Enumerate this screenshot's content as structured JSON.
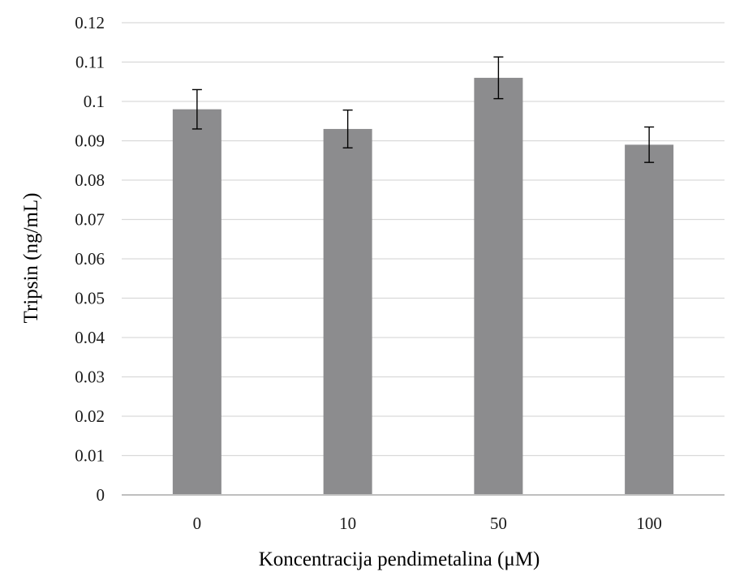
{
  "chart_data": {
    "type": "bar",
    "categories": [
      "0",
      "10",
      "50",
      "100"
    ],
    "values": [
      0.098,
      0.093,
      0.106,
      0.089
    ],
    "errors": [
      0.005,
      0.0048,
      0.0053,
      0.0045
    ],
    "title": "",
    "xlabel": "Koncentracija pendimetalina (μM)",
    "ylabel": "Tripsin (ng/mL)",
    "ylim": [
      0,
      0.12
    ],
    "yticks": [
      0,
      0.01,
      0.02,
      0.03,
      0.04,
      0.05,
      0.06,
      0.07,
      0.08,
      0.09,
      0.1,
      0.11,
      0.12
    ],
    "grid": true,
    "legend": "none",
    "colors": {
      "bar": "#8c8c8e",
      "grid": "#d9d9d9",
      "axis": "#bfbfbf",
      "error": "#000000"
    }
  }
}
